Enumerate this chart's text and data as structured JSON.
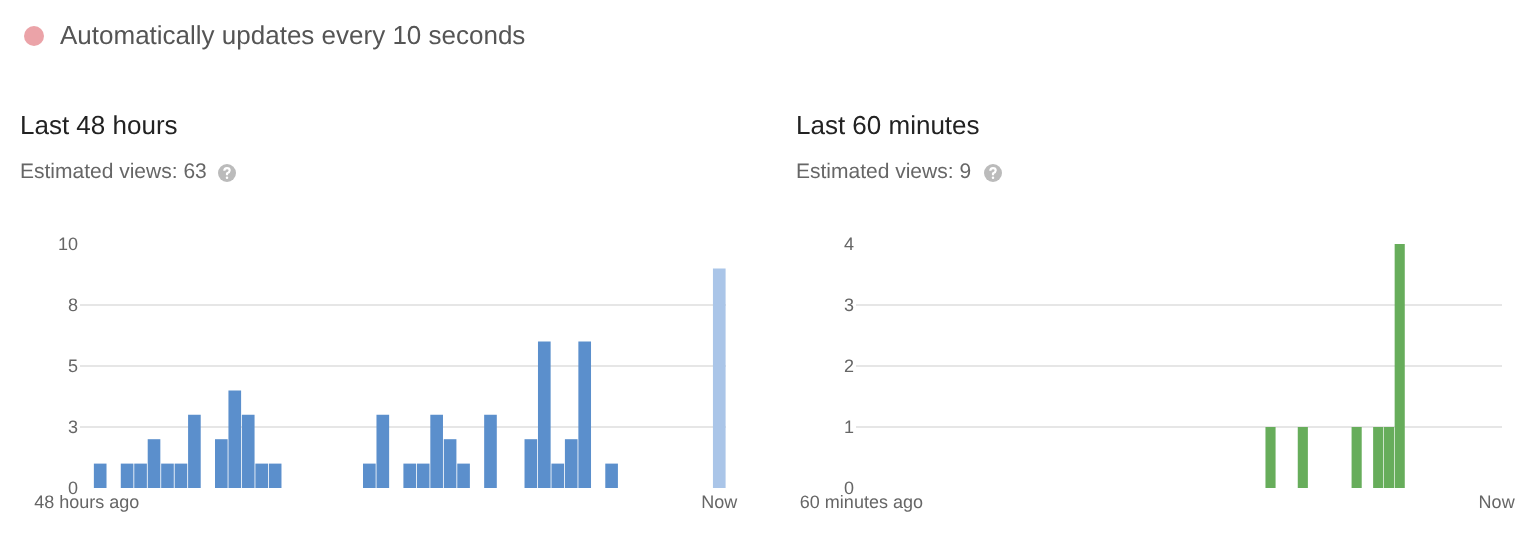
{
  "chart_data": [
    {
      "type": "bar",
      "annotations": [
        "Automatically updates every 10 seconds"
      ],
      "title": "Last 48 hours",
      "subtitle": "Estimated views: 63",
      "categories": [
        "48 hours ago",
        null,
        null,
        null,
        null,
        null,
        null,
        null,
        null,
        null,
        null,
        null,
        null,
        null,
        null,
        null,
        null,
        null,
        null,
        null,
        null,
        null,
        null,
        null,
        null,
        null,
        null,
        null,
        null,
        null,
        null,
        null,
        null,
        null,
        null,
        null,
        null,
        null,
        null,
        null,
        null,
        null,
        null,
        null,
        null,
        null,
        null,
        "Now"
      ],
      "values": [
        0,
        1,
        0,
        1,
        1,
        2,
        1,
        1,
        3,
        0,
        2,
        4,
        3,
        1,
        1,
        0,
        0,
        0,
        0,
        0,
        0,
        1,
        3,
        0,
        1,
        1,
        3,
        2,
        1,
        0,
        3,
        0,
        0,
        2,
        6,
        1,
        2,
        6,
        0,
        1,
        0,
        0,
        0,
        0,
        0,
        0,
        0,
        9
      ],
      "colors": [
        "#5b8fcc",
        "#5b8fcc",
        "#5b8fcc",
        "#5b8fcc",
        "#5b8fcc",
        "#5b8fcc",
        "#5b8fcc",
        "#5b8fcc",
        "#5b8fcc",
        "#5b8fcc",
        "#5b8fcc",
        "#5b8fcc",
        "#5b8fcc",
        "#5b8fcc",
        "#5b8fcc",
        "#5b8fcc",
        "#5b8fcc",
        "#5b8fcc",
        "#5b8fcc",
        "#5b8fcc",
        "#5b8fcc",
        "#5b8fcc",
        "#5b8fcc",
        "#5b8fcc",
        "#5b8fcc",
        "#5b8fcc",
        "#5b8fcc",
        "#5b8fcc",
        "#5b8fcc",
        "#5b8fcc",
        "#5b8fcc",
        "#5b8fcc",
        "#5b8fcc",
        "#5b8fcc",
        "#5b8fcc",
        "#5b8fcc",
        "#5b8fcc",
        "#5b8fcc",
        "#5b8fcc",
        "#5b8fcc",
        "#5b8fcc",
        "#5b8fcc",
        "#5b8fcc",
        "#5b8fcc",
        "#5b8fcc",
        "#5b8fcc",
        "#5b8fcc",
        "#aac5e8"
      ],
      "ylim": [
        0,
        10
      ],
      "yticks": [
        0,
        {
          "value": 2.5,
          "label": "3"
        },
        5,
        {
          "value": 7.5,
          "label": "8"
        },
        10
      ],
      "grid": "y"
    },
    {
      "type": "bar",
      "title": "Last 60 minutes",
      "subtitle": "Estimated views: 9",
      "categories": [
        "60 minutes ago",
        null,
        null,
        null,
        null,
        null,
        null,
        null,
        null,
        null,
        null,
        null,
        null,
        null,
        null,
        null,
        null,
        null,
        null,
        null,
        null,
        null,
        null,
        null,
        null,
        null,
        null,
        null,
        null,
        null,
        null,
        null,
        null,
        null,
        null,
        null,
        null,
        null,
        null,
        null,
        null,
        null,
        null,
        null,
        null,
        null,
        null,
        null,
        null,
        null,
        null,
        null,
        null,
        null,
        null,
        null,
        null,
        null,
        null,
        "Now"
      ],
      "values": [
        0,
        0,
        0,
        0,
        0,
        0,
        0,
        0,
        0,
        0,
        0,
        0,
        0,
        0,
        0,
        0,
        0,
        0,
        0,
        0,
        0,
        0,
        0,
        0,
        0,
        0,
        0,
        0,
        0,
        0,
        0,
        0,
        0,
        0,
        0,
        0,
        0,
        0,
        1,
        0,
        0,
        1,
        0,
        0,
        0,
        0,
        1,
        0,
        1,
        1,
        4,
        0,
        0,
        0,
        0,
        0,
        0,
        0,
        0,
        0
      ],
      "color": "#67ad5b",
      "ylim": [
        0,
        4
      ],
      "yticks": [
        0,
        1,
        2,
        3,
        4
      ],
      "grid": "y"
    }
  ]
}
